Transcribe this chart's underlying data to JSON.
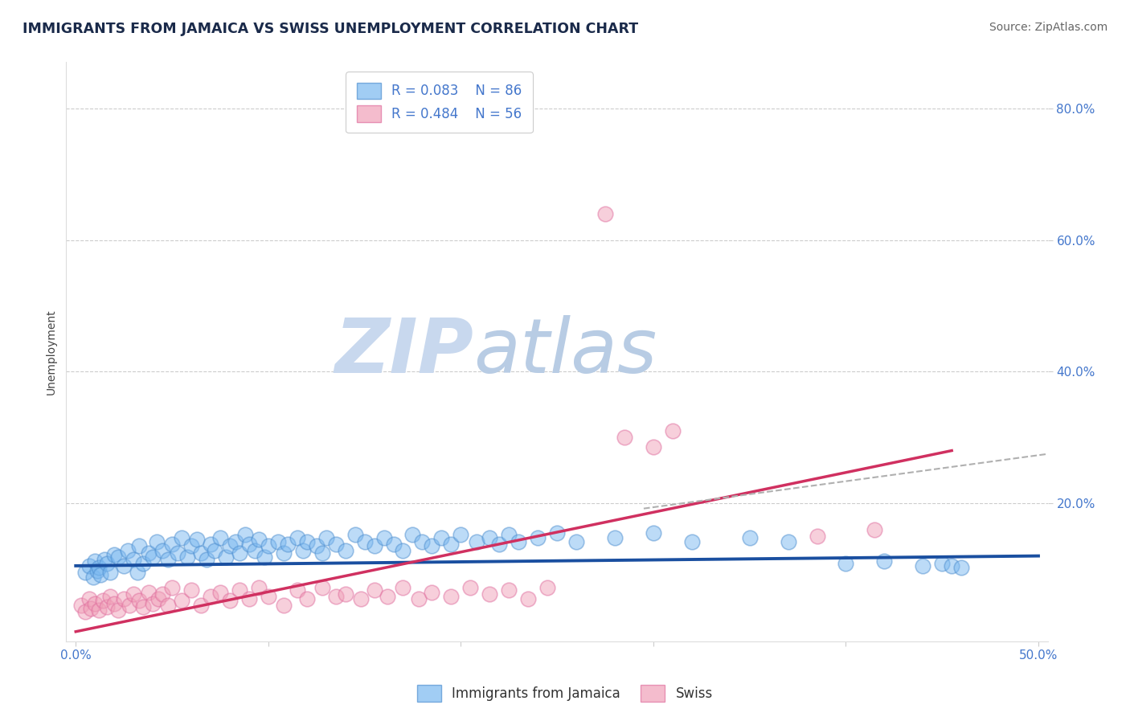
{
  "title": "IMMIGRANTS FROM JAMAICA VS SWISS UNEMPLOYMENT CORRELATION CHART",
  "source_text": "Source: ZipAtlas.com",
  "ylabel": "Unemployment",
  "xlim": [
    -0.005,
    0.505
  ],
  "ylim": [
    -0.01,
    0.87
  ],
  "xtick_positions": [
    0.0,
    0.1,
    0.2,
    0.3,
    0.4,
    0.5
  ],
  "xtick_labels_show": [
    "0.0%",
    "",
    "",
    "",
    "",
    "50.0%"
  ],
  "ytick_positions": [
    0.2,
    0.4,
    0.6,
    0.8
  ],
  "ytick_labels": [
    "20.0%",
    "40.0%",
    "60.0%",
    "80.0%"
  ],
  "grid_color": "#cccccc",
  "background_color": "#ffffff",
  "watermark_zip": "ZIP",
  "watermark_atlas": "atlas",
  "watermark_color_zip": "#c8d8ee",
  "watermark_color_atlas": "#b8cce4",
  "blue_color": "#7ab8f0",
  "pink_color": "#f0a0b8",
  "blue_edge_color": "#5090d0",
  "pink_edge_color": "#e070a0",
  "blue_line_color": "#1a4fa0",
  "pink_line_color": "#d03060",
  "gray_line_color": "#b0b0b0",
  "legend_label_blue": "Immigrants from Jamaica",
  "legend_label_pink": "Swiss",
  "title_color": "#1a2a4a",
  "source_color": "#666666",
  "tick_color": "#4477cc",
  "title_fontsize": 12.5,
  "tick_label_fontsize": 11,
  "legend_fontsize": 12,
  "source_fontsize": 10,
  "ylabel_fontsize": 10,
  "blue_x": [
    0.005,
    0.007,
    0.009,
    0.01,
    0.011,
    0.012,
    0.013,
    0.015,
    0.016,
    0.018,
    0.02,
    0.022,
    0.025,
    0.027,
    0.03,
    0.032,
    0.033,
    0.035,
    0.038,
    0.04,
    0.042,
    0.045,
    0.048,
    0.05,
    0.053,
    0.055,
    0.058,
    0.06,
    0.063,
    0.065,
    0.068,
    0.07,
    0.072,
    0.075,
    0.078,
    0.08,
    0.083,
    0.085,
    0.088,
    0.09,
    0.093,
    0.095,
    0.098,
    0.1,
    0.105,
    0.108,
    0.11,
    0.115,
    0.118,
    0.12,
    0.125,
    0.128,
    0.13,
    0.135,
    0.14,
    0.145,
    0.15,
    0.155,
    0.16,
    0.165,
    0.17,
    0.175,
    0.18,
    0.185,
    0.19,
    0.195,
    0.2,
    0.208,
    0.215,
    0.22,
    0.225,
    0.23,
    0.24,
    0.25,
    0.26,
    0.28,
    0.3,
    0.32,
    0.35,
    0.37,
    0.4,
    0.42,
    0.44,
    0.45,
    0.455,
    0.46
  ],
  "blue_y": [
    0.095,
    0.105,
    0.088,
    0.112,
    0.098,
    0.102,
    0.092,
    0.115,
    0.108,
    0.095,
    0.122,
    0.118,
    0.105,
    0.128,
    0.115,
    0.095,
    0.135,
    0.108,
    0.125,
    0.118,
    0.142,
    0.128,
    0.115,
    0.138,
    0.125,
    0.148,
    0.118,
    0.135,
    0.145,
    0.125,
    0.115,
    0.138,
    0.128,
    0.148,
    0.118,
    0.135,
    0.142,
    0.125,
    0.152,
    0.138,
    0.128,
    0.145,
    0.118,
    0.135,
    0.142,
    0.125,
    0.138,
    0.148,
    0.128,
    0.142,
    0.135,
    0.125,
    0.148,
    0.138,
    0.128,
    0.152,
    0.142,
    0.135,
    0.148,
    0.138,
    0.128,
    0.152,
    0.142,
    0.135,
    0.148,
    0.138,
    0.152,
    0.142,
    0.148,
    0.138,
    0.152,
    0.142,
    0.148,
    0.155,
    0.142,
    0.148,
    0.155,
    0.142,
    0.148,
    0.142,
    0.108,
    0.112,
    0.105,
    0.108,
    0.105,
    0.102
  ],
  "pink_x": [
    0.003,
    0.005,
    0.007,
    0.008,
    0.01,
    0.012,
    0.014,
    0.016,
    0.018,
    0.02,
    0.022,
    0.025,
    0.028,
    0.03,
    0.033,
    0.035,
    0.038,
    0.04,
    0.043,
    0.045,
    0.048,
    0.05,
    0.055,
    0.06,
    0.065,
    0.07,
    0.075,
    0.08,
    0.085,
    0.09,
    0.095,
    0.1,
    0.108,
    0.115,
    0.12,
    0.128,
    0.135,
    0.14,
    0.148,
    0.155,
    0.162,
    0.17,
    0.178,
    0.185,
    0.195,
    0.205,
    0.215,
    0.225,
    0.235,
    0.245,
    0.275,
    0.285,
    0.3,
    0.31,
    0.385,
    0.415
  ],
  "pink_y": [
    0.045,
    0.035,
    0.055,
    0.04,
    0.048,
    0.038,
    0.052,
    0.042,
    0.058,
    0.048,
    0.038,
    0.055,
    0.045,
    0.062,
    0.052,
    0.042,
    0.065,
    0.048,
    0.055,
    0.062,
    0.045,
    0.072,
    0.052,
    0.068,
    0.045,
    0.058,
    0.065,
    0.052,
    0.068,
    0.055,
    0.072,
    0.058,
    0.045,
    0.068,
    0.055,
    0.072,
    0.058,
    0.062,
    0.055,
    0.068,
    0.058,
    0.072,
    0.055,
    0.065,
    0.058,
    0.072,
    0.062,
    0.068,
    0.055,
    0.072,
    0.64,
    0.3,
    0.285,
    0.31,
    0.15,
    0.16
  ],
  "blue_line_x": [
    0.0,
    0.5
  ],
  "blue_line_y": [
    0.105,
    0.12
  ],
  "pink_line_x": [
    0.0,
    0.455
  ],
  "pink_line_y": [
    0.005,
    0.28
  ],
  "gray_line_x": [
    0.295,
    0.505
  ],
  "gray_line_y": [
    0.192,
    0.275
  ]
}
